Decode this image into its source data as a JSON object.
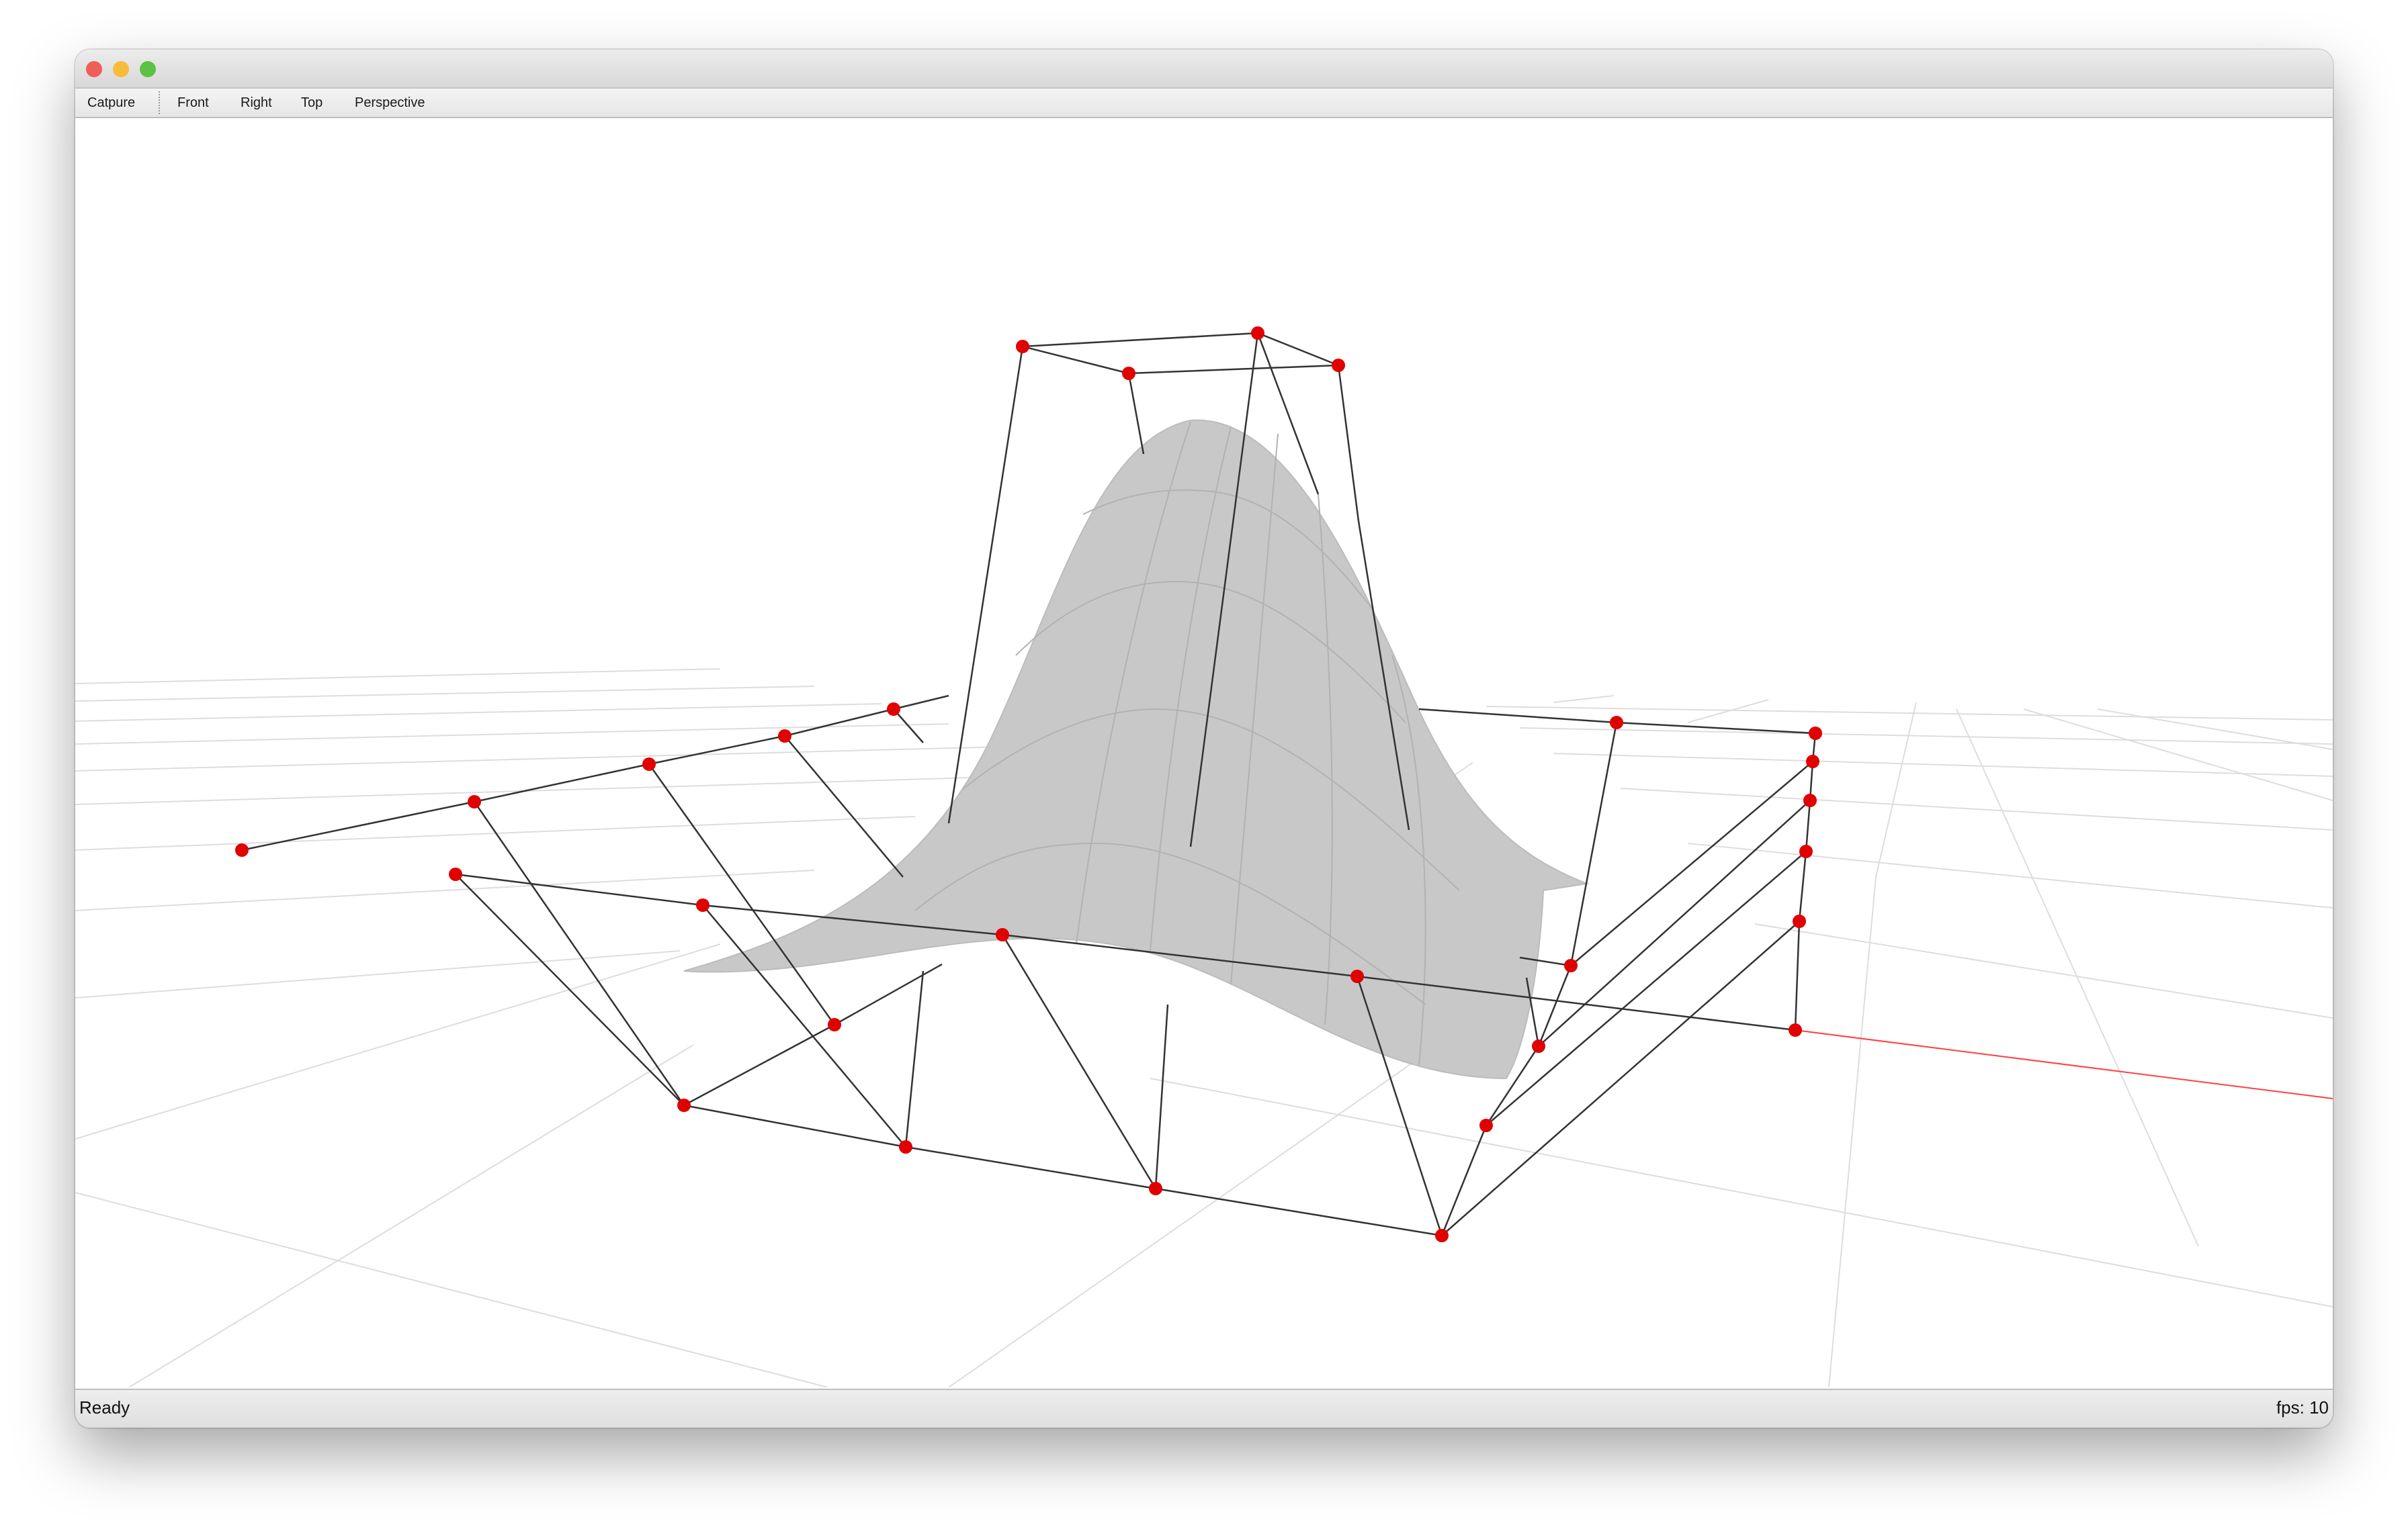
{
  "window": {
    "controls": [
      "close",
      "minimize",
      "zoom"
    ]
  },
  "menubar": {
    "items": [
      {
        "label": "Catpure"
      },
      {
        "label": "Front"
      },
      {
        "label": "Right"
      },
      {
        "label": "Top"
      },
      {
        "label": "Perspective"
      }
    ]
  },
  "viewport": {
    "grid_color": "#dddddd",
    "axis_color": "#ff4040",
    "surface_color": "#c8c8c8",
    "control_point_color": "#e00000",
    "control_net_color": "#333333"
  },
  "statusbar": {
    "status": "Ready",
    "fps": "fps: 10"
  }
}
